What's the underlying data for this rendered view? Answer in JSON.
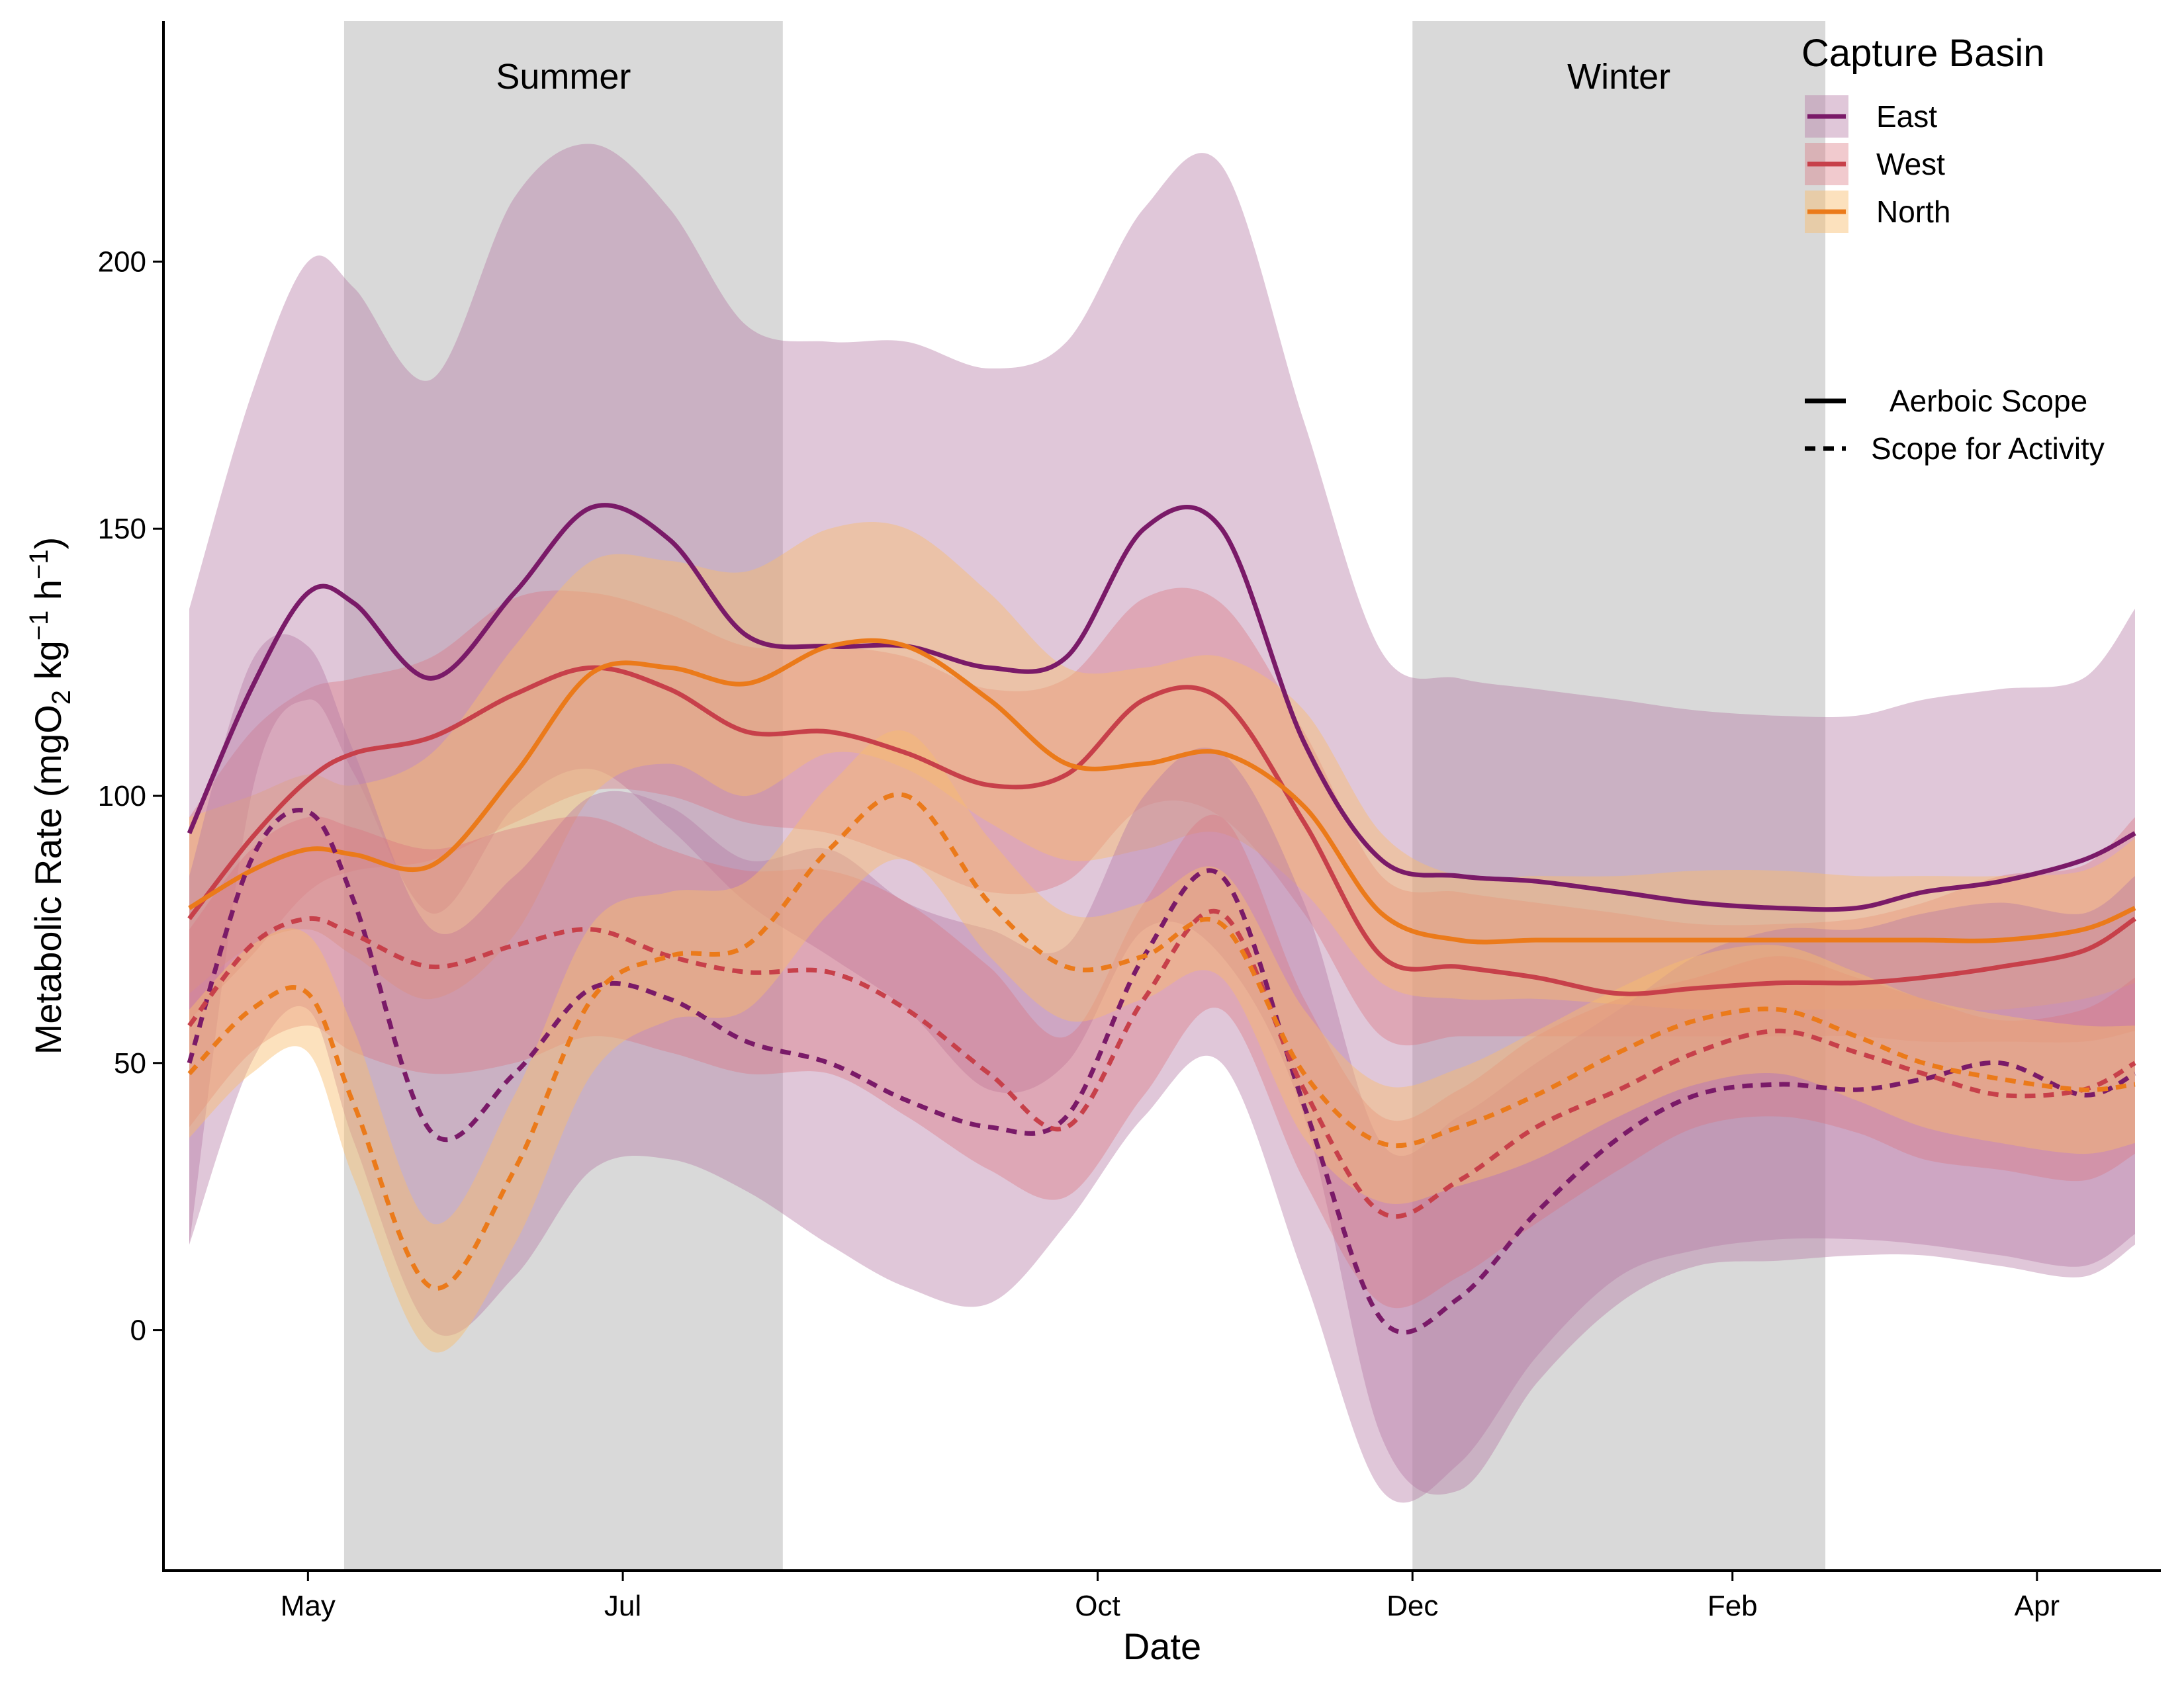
{
  "chart_data": {
    "type": "line",
    "xlabel": "Date",
    "ylabel": "Metabolic Rate (mgO2 kg-1 h-1)",
    "ylabel_parts": {
      "pre": "Metabolic Rate (mgO",
      "sub": "2",
      "mid": " kg",
      "sup1": "−1",
      "mid2": " h",
      "sup2": "−1",
      "post": ")"
    },
    "x_range": [
      "2016-04-03",
      "2017-04-25"
    ],
    "ylim": [
      -45,
      245
    ],
    "x_ticks": [
      {
        "date": "2016-05-01",
        "label": "May"
      },
      {
        "date": "2016-07-01",
        "label": "Jul"
      },
      {
        "date": "2016-10-01",
        "label": "Oct"
      },
      {
        "date": "2016-12-01",
        "label": "Dec"
      },
      {
        "date": "2017-02-01",
        "label": "Feb"
      },
      {
        "date": "2017-04-01",
        "label": "Apr"
      }
    ],
    "y_ticks": [
      0,
      50,
      100,
      150,
      200
    ],
    "grid": false,
    "seasons": [
      {
        "label": "Summer",
        "start": "2016-05-08",
        "end": "2016-08-01"
      },
      {
        "label": "Winter",
        "start": "2016-12-01",
        "end": "2017-02-19"
      }
    ],
    "legend": {
      "title": "Capture Basin",
      "position": "top-right",
      "basins": [
        {
          "name": "East",
          "color": "#7a1a68"
        },
        {
          "name": "West",
          "color": "#c7404a"
        },
        {
          "name": "North",
          "color": "#eb7a1a"
        }
      ],
      "linetypes": [
        {
          "name": "Aerboic Scope",
          "dash": "solid"
        },
        {
          "name": "Scope for Activity",
          "dash": "dashed"
        }
      ]
    },
    "series": [
      {
        "name": "East",
        "metric": "Aerboic Scope",
        "color": "#7a1a68",
        "fill": "#b57aa4",
        "fill_opacity": 0.42,
        "dash": "solid",
        "x": [
          "2016-04-08",
          "2016-04-20",
          "2016-05-01",
          "2016-05-10",
          "2016-05-25",
          "2016-06-10",
          "2016-06-25",
          "2016-07-10",
          "2016-07-25",
          "2016-08-10",
          "2016-08-25",
          "2016-09-10",
          "2016-09-25",
          "2016-10-10",
          "2016-10-25",
          "2016-11-10",
          "2016-11-25",
          "2016-12-10",
          "2016-12-25",
          "2017-01-10",
          "2017-01-25",
          "2017-02-10",
          "2017-02-25",
          "2017-03-10",
          "2017-03-25",
          "2017-04-10",
          "2017-04-20"
        ],
        "y": [
          93,
          120,
          138,
          136,
          122,
          138,
          154,
          148,
          130,
          128,
          128,
          124,
          126,
          150,
          150,
          110,
          88,
          85,
          84,
          82,
          80,
          79,
          79,
          82,
          84,
          88,
          93
        ],
        "lower": [
          16,
          100,
          118,
          104,
          78,
          98,
          105,
          94,
          80,
          70,
          60,
          45,
          50,
          75,
          70,
          40,
          -20,
          -30,
          -10,
          5,
          12,
          13,
          14,
          14,
          12,
          10,
          16
        ],
        "upper": [
          135,
          175,
          200,
          195,
          178,
          212,
          222,
          210,
          188,
          185,
          185,
          180,
          185,
          210,
          218,
          170,
          127,
          122,
          120,
          118,
          116,
          115,
          115,
          118,
          120,
          122,
          135
        ]
      },
      {
        "name": "West",
        "metric": "Aerboic Scope",
        "color": "#c7404a",
        "fill": "#d9737d",
        "fill_opacity": 0.38,
        "dash": "solid",
        "x": [
          "2016-04-08",
          "2016-04-20",
          "2016-05-01",
          "2016-05-10",
          "2016-05-25",
          "2016-06-10",
          "2016-06-25",
          "2016-07-10",
          "2016-07-25",
          "2016-08-10",
          "2016-08-25",
          "2016-09-10",
          "2016-09-25",
          "2016-10-10",
          "2016-10-25",
          "2016-11-10",
          "2016-11-25",
          "2016-12-10",
          "2016-12-25",
          "2017-01-10",
          "2017-01-25",
          "2017-02-10",
          "2017-02-25",
          "2017-03-10",
          "2017-03-25",
          "2017-04-10",
          "2017-04-20"
        ],
        "y": [
          77,
          92,
          103,
          108,
          111,
          119,
          124,
          120,
          112,
          112,
          108,
          102,
          104,
          118,
          118,
          95,
          70,
          68,
          66,
          63,
          64,
          65,
          65,
          66,
          68,
          71,
          77
        ],
        "lower": [
          58,
          70,
          82,
          86,
          88,
          95,
          101,
          100,
          95,
          93,
          88,
          82,
          84,
          98,
          96,
          78,
          55,
          55,
          55,
          55,
          55,
          55,
          55,
          54,
          54,
          54,
          56
        ],
        "upper": [
          96,
          112,
          120,
          122,
          126,
          137,
          138,
          134,
          128,
          128,
          126,
          120,
          122,
          137,
          136,
          112,
          85,
          82,
          80,
          78,
          76,
          76,
          77,
          80,
          85,
          87,
          96
        ]
      },
      {
        "name": "North",
        "metric": "Aerboic Scope",
        "color": "#eb7a1a",
        "fill": "#f8bc6c",
        "fill_opacity": 0.45,
        "dash": "solid",
        "x": [
          "2016-04-08",
          "2016-04-20",
          "2016-05-01",
          "2016-05-10",
          "2016-05-25",
          "2016-06-10",
          "2016-06-25",
          "2016-07-10",
          "2016-07-25",
          "2016-08-10",
          "2016-08-25",
          "2016-09-10",
          "2016-09-25",
          "2016-10-10",
          "2016-10-25",
          "2016-11-10",
          "2016-11-25",
          "2016-12-10",
          "2016-12-25",
          "2017-01-10",
          "2017-01-25",
          "2017-02-10",
          "2017-02-25",
          "2017-03-10",
          "2017-03-25",
          "2017-04-10",
          "2017-04-20"
        ],
        "y": [
          79,
          86,
          90,
          89,
          87,
          104,
          123,
          124,
          121,
          128,
          128,
          118,
          106,
          106,
          108,
          98,
          78,
          73,
          73,
          73,
          73,
          73,
          73,
          73,
          73,
          75,
          79
        ],
        "lower": [
          63,
          72,
          75,
          70,
          62,
          74,
          100,
          106,
          100,
          108,
          105,
          95,
          88,
          90,
          93,
          82,
          65,
          62,
          62,
          61,
          60,
          60,
          60,
          60,
          60,
          62,
          65
        ],
        "upper": [
          96,
          100,
          104,
          102,
          108,
          128,
          144,
          144,
          142,
          150,
          150,
          138,
          124,
          124,
          126,
          116,
          93,
          85,
          85,
          85,
          86,
          86,
          85,
          85,
          85,
          86,
          92
        ]
      },
      {
        "name": "East",
        "metric": "Scope for Activity",
        "color": "#7a1a68",
        "fill": "#b57aa4",
        "fill_opacity": 0.42,
        "dash": "dashed",
        "x": [
          "2016-04-08",
          "2016-04-20",
          "2016-05-01",
          "2016-05-10",
          "2016-05-25",
          "2016-06-10",
          "2016-06-25",
          "2016-07-10",
          "2016-07-25",
          "2016-08-10",
          "2016-08-25",
          "2016-09-10",
          "2016-09-25",
          "2016-10-10",
          "2016-10-25",
          "2016-11-10",
          "2016-11-25",
          "2016-12-10",
          "2016-12-25",
          "2017-01-10",
          "2017-01-25",
          "2017-02-10",
          "2017-02-25",
          "2017-03-10",
          "2017-03-25",
          "2017-04-10",
          "2017-04-20"
        ],
        "y": [
          50,
          88,
          97,
          80,
          37,
          48,
          64,
          62,
          54,
          50,
          43,
          38,
          40,
          70,
          85,
          42,
          2,
          6,
          22,
          36,
          44,
          46,
          45,
          47,
          50,
          44,
          48
        ],
        "lower": [
          16,
          50,
          60,
          35,
          0,
          10,
          30,
          32,
          26,
          16,
          8,
          5,
          20,
          40,
          50,
          10,
          -30,
          -25,
          -5,
          10,
          15,
          17,
          17,
          16,
          14,
          12,
          18
        ],
        "upper": [
          85,
          125,
          128,
          108,
          75,
          85,
          100,
          98,
          88,
          90,
          80,
          75,
          72,
          100,
          108,
          80,
          35,
          40,
          50,
          60,
          70,
          75,
          75,
          78,
          80,
          78,
          85
        ]
      },
      {
        "name": "West",
        "metric": "Scope for Activity",
        "color": "#c7404a",
        "fill": "#d9737d",
        "fill_opacity": 0.38,
        "dash": "dashed",
        "x": [
          "2016-04-08",
          "2016-04-20",
          "2016-05-01",
          "2016-05-10",
          "2016-05-25",
          "2016-06-10",
          "2016-06-25",
          "2016-07-10",
          "2016-07-25",
          "2016-08-10",
          "2016-08-25",
          "2016-09-10",
          "2016-09-25",
          "2016-10-10",
          "2016-10-25",
          "2016-11-10",
          "2016-11-25",
          "2016-12-10",
          "2016-12-25",
          "2017-01-10",
          "2017-01-25",
          "2017-02-10",
          "2017-02-25",
          "2017-03-10",
          "2017-03-25",
          "2017-04-10",
          "2017-04-20"
        ],
        "y": [
          57,
          72,
          77,
          74,
          68,
          72,
          75,
          70,
          67,
          67,
          60,
          48,
          38,
          62,
          78,
          45,
          22,
          28,
          38,
          45,
          52,
          56,
          52,
          48,
          44,
          45,
          50
        ],
        "lower": [
          38,
          52,
          57,
          52,
          48,
          50,
          55,
          52,
          48,
          48,
          40,
          30,
          25,
          44,
          60,
          28,
          5,
          10,
          20,
          30,
          38,
          40,
          37,
          32,
          30,
          28,
          33
        ],
        "upper": [
          75,
          90,
          96,
          94,
          90,
          94,
          96,
          90,
          86,
          86,
          80,
          68,
          55,
          80,
          96,
          62,
          40,
          45,
          55,
          62,
          66,
          70,
          66,
          62,
          58,
          60,
          66
        ]
      },
      {
        "name": "North",
        "metric": "Scope for Activity",
        "color": "#eb7a1a",
        "fill": "#f8bc6c",
        "fill_opacity": 0.45,
        "dash": "dashed",
        "x": [
          "2016-04-08",
          "2016-04-20",
          "2016-05-01",
          "2016-05-10",
          "2016-05-25",
          "2016-06-10",
          "2016-06-25",
          "2016-07-10",
          "2016-07-25",
          "2016-08-10",
          "2016-08-25",
          "2016-09-10",
          "2016-09-25",
          "2016-10-10",
          "2016-10-25",
          "2016-11-10",
          "2016-11-25",
          "2016-12-10",
          "2016-12-25",
          "2017-01-10",
          "2017-01-25",
          "2017-02-10",
          "2017-02-25",
          "2017-03-10",
          "2017-03-25",
          "2017-04-10",
          "2017-04-20"
        ],
        "y": [
          48,
          60,
          63,
          42,
          8,
          30,
          62,
          70,
          72,
          90,
          100,
          80,
          68,
          70,
          76,
          48,
          35,
          38,
          44,
          52,
          58,
          60,
          55,
          50,
          47,
          45,
          46
        ],
        "lower": [
          36,
          48,
          52,
          28,
          -4,
          16,
          48,
          58,
          60,
          78,
          88,
          70,
          58,
          62,
          66,
          36,
          24,
          27,
          32,
          40,
          46,
          48,
          43,
          38,
          35,
          33,
          35
        ],
        "upper": [
          60,
          72,
          74,
          56,
          20,
          44,
          76,
          82,
          84,
          102,
          112,
          92,
          78,
          80,
          86,
          60,
          46,
          49,
          56,
          64,
          70,
          72,
          67,
          62,
          59,
          57,
          57
        ]
      }
    ]
  }
}
